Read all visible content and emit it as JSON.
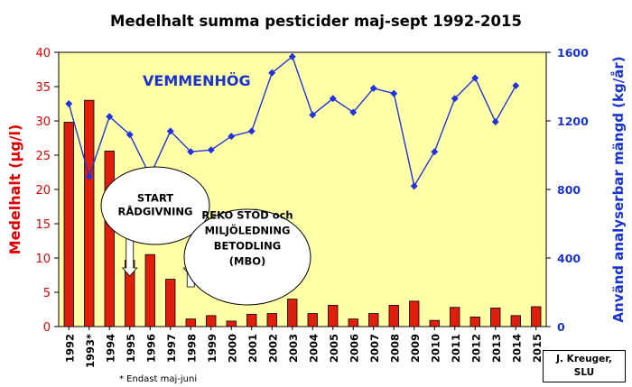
{
  "chart_data": {
    "type": "bar",
    "title": "Medelhalt summa pesticider maj-sept 1992-2015",
    "location_label": "VEMMENHÖG",
    "categories": [
      "1992",
      "1993*",
      "1994",
      "1995",
      "1996",
      "1997",
      "1998",
      "1999",
      "2000",
      "2001",
      "2002",
      "2003",
      "2004",
      "2005",
      "2006",
      "2007",
      "2008",
      "2009",
      "2010",
      "2011",
      "2012",
      "2013",
      "2014",
      "2015"
    ],
    "series": [
      {
        "name": "",
        "type": "bar",
        "axis": "left",
        "values": [
          29.8,
          33.0,
          25.6,
          9.7,
          10.5,
          6.9,
          1.1,
          1.6,
          0.8,
          1.8,
          1.9,
          4.0,
          1.9,
          3.1,
          1.1,
          1.9,
          3.1,
          3.7,
          0.9,
          2.8,
          1.4,
          2.7,
          1.6,
          2.9
        ]
      },
      {
        "name": "",
        "type": "line",
        "axis": "right",
        "values": [
          1300,
          875,
          1225,
          1120,
          880,
          1140,
          1020,
          1030,
          1110,
          1140,
          1480,
          1575,
          1235,
          1330,
          1250,
          1390,
          1360,
          820,
          1020,
          1330,
          1450,
          1195,
          1405,
          null
        ]
      }
    ],
    "ylabel_left": "Medelhalt (µg/l)",
    "ylabel_right": "Använd analyserbar mängd (kg/år)",
    "ylim_left": [
      0,
      40
    ],
    "yticks_left": [
      "0",
      "5",
      "10",
      "15",
      "20",
      "25",
      "30",
      "35",
      "40"
    ],
    "ylim_right": [
      0,
      1600
    ],
    "yticks_right": [
      "0",
      "400",
      "800",
      "1200",
      "1600"
    ],
    "grid": false,
    "annotations": [
      {
        "id": "start",
        "lines": [
          "START",
          "RÅDGIVNING"
        ],
        "arrow_at": "1995"
      },
      {
        "id": "reko",
        "lines": [
          "REKO STÖD och",
          "MILJÖLEDNING",
          "BETODLING",
          "(MBO)"
        ],
        "arrow_at": "1998"
      }
    ],
    "footnote": "* Endast maj-juni",
    "credit": [
      "J. Kreuger,",
      "SLU"
    ],
    "colors": {
      "bar": "#e11d0c",
      "line": "#2233dd",
      "plot_bg": "#ffffa8",
      "left_axis": "#e00000",
      "right_axis": "#1a33cc",
      "location_label": "#1a33cc"
    }
  }
}
